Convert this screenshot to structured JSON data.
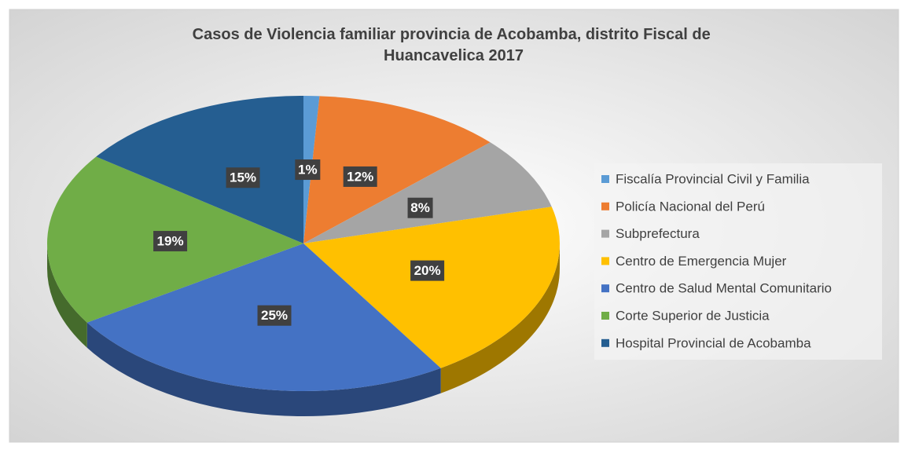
{
  "chart_data": {
    "type": "pie",
    "title": "Casos de Violencia familiar provincia de Acobamba, distrito Fiscal de Huancavelica 2017",
    "categories": [
      "Fiscalía Provincial Civil y Familia",
      "Policía Nacional del Perú",
      "Subprefectura",
      "Centro de Emergencia Mujer",
      "Centro de Salud Mental Comunitario",
      "Corte Superior de Justicia",
      "Hospital Provincial de Acobamba"
    ],
    "values": [
      1,
      12,
      8,
      20,
      25,
      19,
      15
    ],
    "value_labels": [
      "1%",
      "12%",
      "8%",
      "20%",
      "25%",
      "19%",
      "15%"
    ],
    "colors": [
      "#5b9bd5",
      "#ed7d31",
      "#a5a5a5",
      "#ffc000",
      "#4472c4",
      "#70ad47",
      "#255e91"
    ],
    "legend": "right"
  }
}
